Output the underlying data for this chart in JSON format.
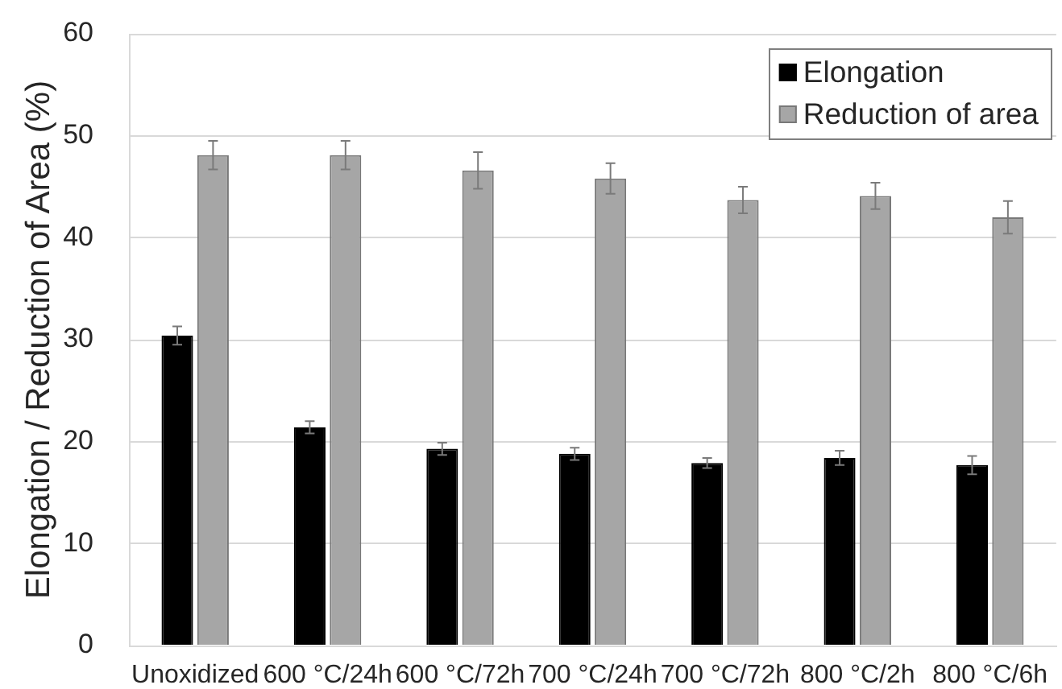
{
  "chart_data": {
    "type": "bar",
    "ylabel": "Elongation / Reduction of Area (%)",
    "categories": [
      "Unoxidized",
      "600 °C/24h",
      "600 °C/72h",
      "700 °C/24h",
      "700 °C/72h",
      "800 °C/2h",
      "800 °C/6h"
    ],
    "series": [
      {
        "name": "Elongation",
        "color": "#000000",
        "values": [
          30.4,
          21.4,
          19.3,
          18.8,
          17.9,
          18.4,
          17.7
        ],
        "errors": [
          0.9,
          0.6,
          0.6,
          0.6,
          0.5,
          0.7,
          0.9
        ]
      },
      {
        "name": "Reduction of area",
        "color": "#a6a6a6",
        "values": [
          48.1,
          48.1,
          46.6,
          45.8,
          43.7,
          44.1,
          42.0
        ],
        "errors": [
          1.4,
          1.4,
          1.8,
          1.5,
          1.3,
          1.3,
          1.6
        ]
      }
    ],
    "ylim": [
      0,
      60
    ],
    "yticks": [
      0,
      10,
      20,
      30,
      40,
      50,
      60
    ],
    "grid": "y",
    "legend": "top right"
  }
}
